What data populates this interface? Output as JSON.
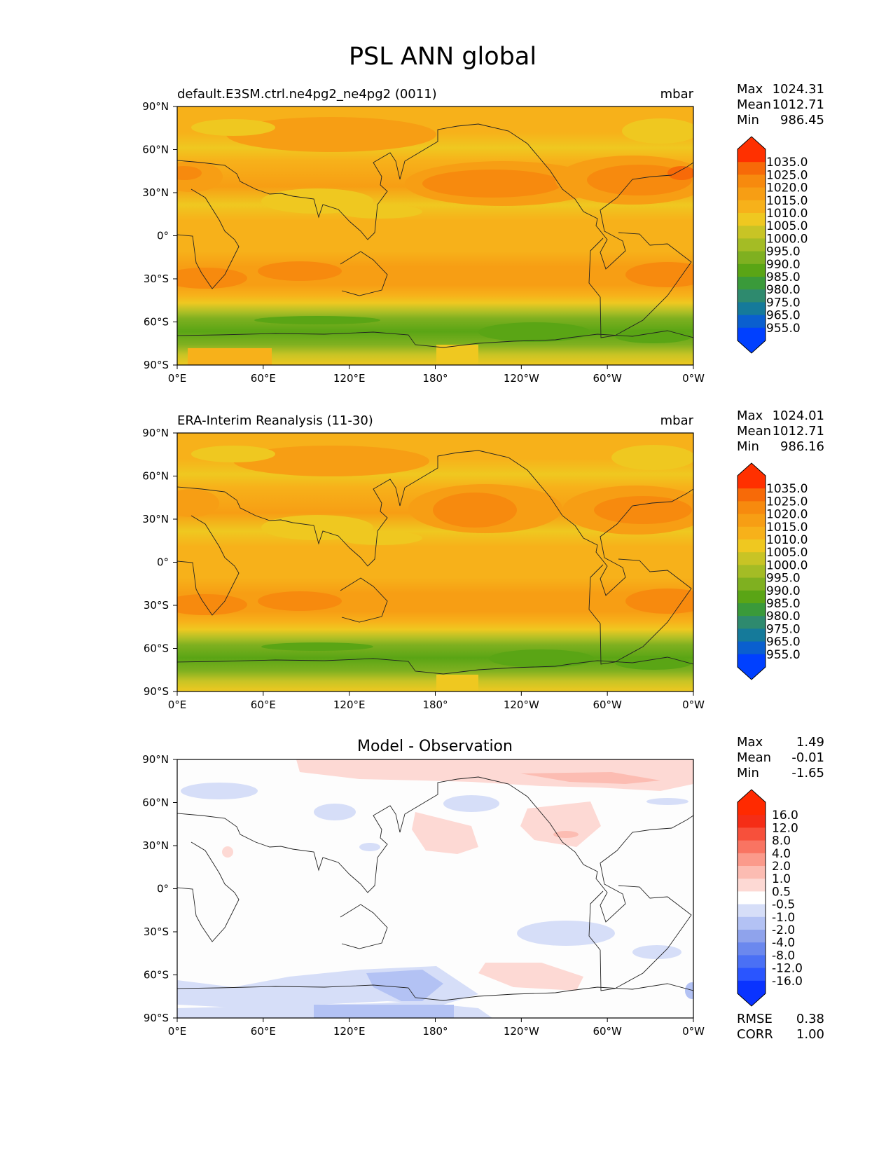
{
  "figure": {
    "title": "PSL ANN global",
    "lon_ticks": [
      "0°E",
      "60°E",
      "120°E",
      "180°",
      "120°W",
      "60°W",
      "0°W"
    ],
    "lat_ticks": [
      "90°N",
      "60°N",
      "30°N",
      "0°",
      "30°S",
      "60°S",
      "90°S"
    ],
    "colors": {
      "abs_scale": [
        "#0040ff",
        "#0a5fcf",
        "#157a9a",
        "#2e8a6e",
        "#3a9a3a",
        "#5aa515",
        "#7fb020",
        "#a4bc25",
        "#c8c425",
        "#efc820",
        "#f7b11a",
        "#f79e14",
        "#f78a0e",
        "#f76a08",
        "#ff3000"
      ],
      "diff_scale": [
        "#0a33ff",
        "#2a55ff",
        "#4a70f5",
        "#6b88ee",
        "#8fa3ec",
        "#b3c2f4",
        "#d6def8",
        "#ffffff",
        "#fdd9d4",
        "#fcbcb2",
        "#fb9a8b",
        "#f97462",
        "#f7503b",
        "#f52d16",
        "#ff2a00"
      ]
    },
    "panels": [
      {
        "id": "test",
        "left_title": "default.E3SM.ctrl.ne4pg2_ne4pg2 (0011)",
        "center_title": "",
        "right_title": "mbar",
        "stats": [
          {
            "label": "Max",
            "value": "1024.31"
          },
          {
            "label": "Mean",
            "value": "1012.71"
          },
          {
            "label": "Min",
            "value": "986.45"
          }
        ],
        "colorbar_labels": [
          "1035.0",
          "1025.0",
          "1020.0",
          "1015.0",
          "1010.0",
          "1005.0",
          "1000.0",
          "995.0",
          "990.0",
          "985.0",
          "980.0",
          "975.0",
          "965.0",
          "955.0"
        ],
        "footer_stats": []
      },
      {
        "id": "reference",
        "left_title": "ERA-Interim Reanalysis (11-30)",
        "center_title": "",
        "right_title": "mbar",
        "stats": [
          {
            "label": "Max",
            "value": "1024.01"
          },
          {
            "label": "Mean",
            "value": "1012.71"
          },
          {
            "label": "Min",
            "value": "986.16"
          }
        ],
        "colorbar_labels": [
          "1035.0",
          "1025.0",
          "1020.0",
          "1015.0",
          "1010.0",
          "1005.0",
          "1000.0",
          "995.0",
          "990.0",
          "985.0",
          "980.0",
          "975.0",
          "965.0",
          "955.0"
        ],
        "footer_stats": []
      },
      {
        "id": "difference",
        "left_title": "",
        "center_title": "Model - Observation",
        "right_title": "",
        "stats": [
          {
            "label": "Max",
            "value": "1.49"
          },
          {
            "label": "Mean",
            "value": "-0.01"
          },
          {
            "label": "Min",
            "value": "-1.65"
          }
        ],
        "colorbar_labels": [
          "16.0",
          "12.0",
          "8.0",
          "4.0",
          "2.0",
          "1.0",
          "0.5",
          "-0.5",
          "-1.0",
          "-2.0",
          "-4.0",
          "-8.0",
          "-12.0",
          "-16.0"
        ],
        "footer_stats": [
          {
            "label": "RMSE",
            "value": "0.38"
          },
          {
            "label": "CORR",
            "value": "1.00"
          }
        ]
      }
    ]
  }
}
